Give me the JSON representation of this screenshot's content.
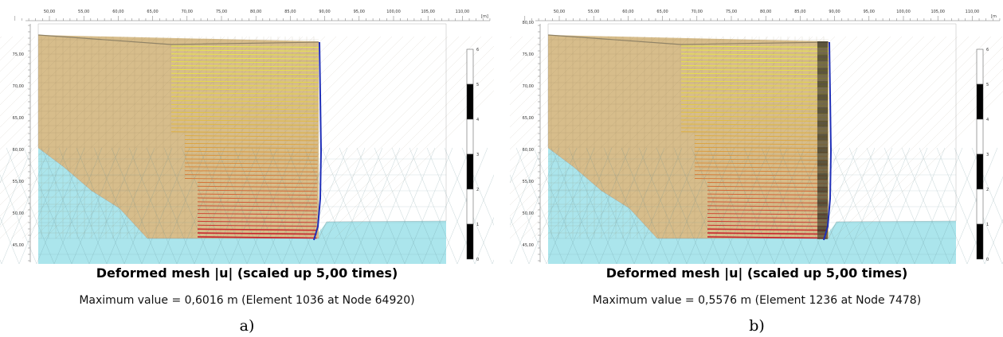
{
  "panels": [
    {
      "id": "a",
      "title": "Deformed mesh |u| (scaled up 5,00 times)",
      "subtitle": "Maximum value = 0,6016 m (Element 1036 at Node 64920)",
      "letter": "a)",
      "unit": "[m]",
      "x_ticks": [
        "50,00",
        "55,00",
        "60,00",
        "65,00",
        "70,00",
        "75,00",
        "80,00",
        "85,00",
        "90,00",
        "95,00",
        "100,00",
        "105,00",
        "110,00"
      ],
      "y_ticks": [
        "75,00",
        "70,00",
        "65,00",
        "60,00",
        "55,00",
        "50,00",
        "45,00"
      ],
      "legend_ticks": [
        "6",
        "5",
        "4",
        "3",
        "2",
        "1",
        "0"
      ],
      "wall_band": false
    },
    {
      "id": "b",
      "title": "Deformed mesh |u| (scaled up 5,00 times)",
      "subtitle": "Maximum value = 0,5576 m (Element 1236 at Node 7478)",
      "letter": "b)",
      "unit": "[m",
      "x_ticks": [
        "50,00",
        "55,00",
        "60,00",
        "65,00",
        "70,00",
        "75,00",
        "80,00",
        "85,00",
        "90,00",
        "95,00",
        "100,00",
        "105,00",
        "110,00"
      ],
      "y_ticks": [
        "80,00",
        "75,00",
        "70,00",
        "65,00",
        "60,00",
        "55,00",
        "50,00",
        "45,00"
      ],
      "legend_ticks": [
        "6",
        "5",
        "4",
        "3",
        "2",
        "1",
        "0"
      ],
      "wall_band": true
    }
  ],
  "colors": {
    "soil_fill": "#d7bd8b",
    "base_soil": "#abe5ec",
    "mesh_line": "#8a7a55",
    "wall_line": "#1f2fb8",
    "anchor_top": "#e8e84a",
    "anchor_bottom": "#c8202a"
  }
}
